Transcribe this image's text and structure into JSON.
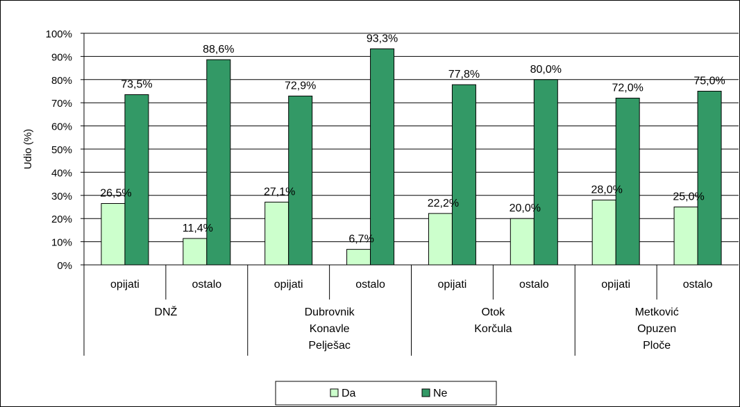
{
  "chart_data": {
    "type": "bar",
    "title": "",
    "xlabel": "",
    "ylabel": "Udio (%)",
    "ylim": [
      0,
      100
    ],
    "ytick_labels": [
      "0%",
      "10%",
      "20%",
      "30%",
      "40%",
      "50%",
      "60%",
      "70%",
      "80%",
      "90%",
      "100%"
    ],
    "grid": true,
    "legend_position": "bottom",
    "groups": [
      {
        "label_lines": [
          "DNŽ"
        ],
        "categories": [
          "opijati",
          "ostalo"
        ]
      },
      {
        "label_lines": [
          "Dubrovnik",
          "Konavle",
          "Pelješac"
        ],
        "categories": [
          "opijati",
          "ostalo"
        ]
      },
      {
        "label_lines": [
          "Otok",
          "Korčula"
        ],
        "categories": [
          "opijati",
          "ostalo"
        ]
      },
      {
        "label_lines": [
          "Metković",
          "Opuzen",
          "Ploče"
        ],
        "categories": [
          "opijati",
          "ostalo"
        ]
      }
    ],
    "series": [
      {
        "name": "Da",
        "color": "#ccffcc",
        "values": [
          26.5,
          11.4,
          27.1,
          6.7,
          22.2,
          20.0,
          28.0,
          25.0
        ],
        "labels": [
          "26,5%",
          "11,4%",
          "27,1%",
          "6,7%",
          "22,2%",
          "20,0%",
          "28,0%",
          "25,0%"
        ]
      },
      {
        "name": "Ne",
        "color": "#339966",
        "values": [
          73.5,
          88.6,
          72.9,
          93.3,
          77.8,
          80.0,
          72.0,
          75.0
        ],
        "labels": [
          "73,5%",
          "88,6%",
          "72,9%",
          "93,3%",
          "77,8%",
          "80,0%",
          "72,0%",
          "75,0%"
        ]
      }
    ]
  }
}
